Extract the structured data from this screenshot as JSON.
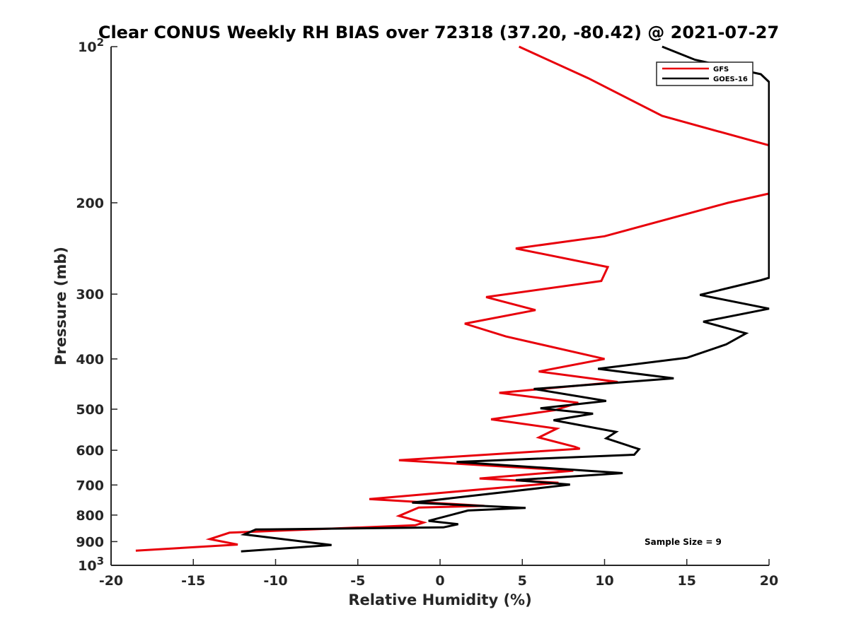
{
  "chart_data": {
    "type": "line",
    "title": "Clear CONUS Weekly RH BIAS over 72318 (37.20, -80.42) @ 2021-07-27",
    "xlabel": "Relative Humidity (%)",
    "ylabel": "Pressure (mb)",
    "xlim": [
      -20,
      20
    ],
    "ylim": [
      100,
      1000
    ],
    "y_scale": "log",
    "y_reversed": true,
    "grid": false,
    "legend_position": "top-right",
    "annotation": "Sample Size = 9",
    "x_ticks": [
      "-20",
      "-15",
      "-10",
      "-5",
      "0",
      "5",
      "10",
      "15",
      "20"
    ],
    "y_ticks": [
      {
        "value": 100,
        "base": "10",
        "exp": "2"
      },
      {
        "value": 200,
        "label": "200"
      },
      {
        "value": 300,
        "label": "300"
      },
      {
        "value": 400,
        "label": "400"
      },
      {
        "value": 500,
        "label": "500"
      },
      {
        "value": 600,
        "label": "600"
      },
      {
        "value": 700,
        "label": "700"
      },
      {
        "value": 800,
        "label": "800"
      },
      {
        "value": 900,
        "label": "900"
      },
      {
        "value": 1000,
        "base": "10",
        "exp": "3"
      }
    ],
    "series": [
      {
        "name": "GFS",
        "color": "#e8000b",
        "points": [
          [
            4.8,
            100
          ],
          [
            9.0,
            115
          ],
          [
            13.5,
            136
          ],
          [
            20.0,
            155
          ],
          [
            20.0,
            192
          ],
          [
            17.5,
            200
          ],
          [
            10.0,
            232
          ],
          [
            4.6,
            245
          ],
          [
            10.2,
            266
          ],
          [
            9.8,
            283
          ],
          [
            2.8,
            304
          ],
          [
            5.8,
            322
          ],
          [
            1.5,
            342
          ],
          [
            4.0,
            362
          ],
          [
            10.0,
            400
          ],
          [
            6.0,
            423
          ],
          [
            10.8,
            443
          ],
          [
            3.6,
            465
          ],
          [
            8.4,
            486
          ],
          [
            7.0,
            502
          ],
          [
            3.1,
            523
          ],
          [
            7.1,
            545
          ],
          [
            6.0,
            567
          ],
          [
            8.2,
            591
          ],
          [
            8.5,
            596
          ],
          [
            -2.5,
            627
          ],
          [
            8.1,
            657
          ],
          [
            2.4,
            680
          ],
          [
            7.2,
            693
          ],
          [
            -4.3,
            745
          ],
          [
            2.7,
            768
          ],
          [
            -1.3,
            774
          ],
          [
            -2.5,
            803
          ],
          [
            -1.0,
            827
          ],
          [
            -1.5,
            837
          ],
          [
            -12.8,
            865
          ],
          [
            -14.0,
            890
          ],
          [
            -12.3,
            912
          ],
          [
            -18.5,
            937
          ]
        ]
      },
      {
        "name": "GOES-16",
        "color": "#000000",
        "points": [
          [
            13.5,
            100
          ],
          [
            15.5,
            106
          ],
          [
            19.5,
            113
          ],
          [
            20.0,
            117
          ],
          [
            20.0,
            279
          ],
          [
            19.5,
            282
          ],
          [
            15.8,
            301
          ],
          [
            20.0,
            320
          ],
          [
            16.0,
            339
          ],
          [
            18.6,
            357
          ],
          [
            17.4,
            375
          ],
          [
            15.0,
            398
          ],
          [
            9.6,
            418
          ],
          [
            14.2,
            436
          ],
          [
            5.7,
            457
          ],
          [
            10.1,
            482
          ],
          [
            6.1,
            498
          ],
          [
            9.3,
            510
          ],
          [
            6.9,
            525
          ],
          [
            10.7,
            553
          ],
          [
            10.1,
            569
          ],
          [
            12.1,
            597
          ],
          [
            11.8,
            612
          ],
          [
            1.0,
            632
          ],
          [
            11.1,
            664
          ],
          [
            4.6,
            685
          ],
          [
            7.9,
            699
          ],
          [
            -1.7,
            757
          ],
          [
            5.2,
            775
          ],
          [
            1.7,
            784
          ],
          [
            -0.7,
            821
          ],
          [
            1.1,
            833
          ],
          [
            0.2,
            845
          ],
          [
            -11.2,
            853
          ],
          [
            -11.9,
            872
          ],
          [
            -6.6,
            914
          ],
          [
            -12.1,
            940
          ]
        ]
      }
    ]
  }
}
